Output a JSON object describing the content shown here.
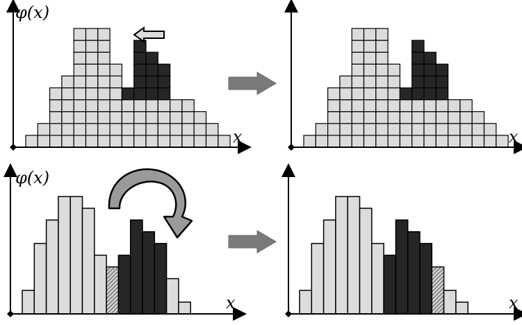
{
  "labels": {
    "phi": "φ(x)",
    "x": "x"
  },
  "colors": {
    "light_cell": "#dcdcdc",
    "dark_cell": "#262626",
    "stroke": "#000000",
    "flow_arrow": "#7a7a7a",
    "curved_arrow": "#9a9a9a"
  },
  "top_left_cells": {
    "light_heights": [
      1,
      2,
      5,
      6,
      10,
      10,
      10,
      7,
      4,
      4,
      4,
      4,
      4,
      4,
      3,
      2,
      1
    ],
    "dark_stack": [
      0,
      0,
      0,
      0,
      0,
      0,
      0,
      0,
      1,
      5,
      4,
      3,
      0,
      0,
      0,
      0,
      0
    ]
  },
  "top_right_cells": {
    "light_heights": [
      1,
      2,
      5,
      6,
      10,
      10,
      10,
      7,
      4,
      4,
      4,
      4,
      4,
      4,
      3,
      2,
      1
    ],
    "dark_stack": [
      0,
      0,
      0,
      0,
      0,
      0,
      0,
      0,
      1,
      5,
      4,
      3,
      0,
      0,
      0,
      0,
      0
    ]
  },
  "bottom_left_bars": {
    "heights": [
      2,
      6,
      8,
      10,
      10,
      9,
      5,
      4,
      5,
      8,
      7,
      6,
      3,
      1
    ],
    "types": [
      "light",
      "light",
      "light",
      "light",
      "light",
      "light",
      "light",
      "hatched",
      "dark",
      "dark",
      "dark",
      "dark",
      "light",
      "light"
    ]
  },
  "bottom_right_bars": {
    "heights": [
      2,
      6,
      8,
      10,
      10,
      9,
      6,
      5,
      8,
      7,
      6,
      4,
      2,
      1
    ],
    "types": [
      "light",
      "light",
      "light",
      "light",
      "light",
      "light",
      "light",
      "dark",
      "dark",
      "dark",
      "dark",
      "hatched",
      "light",
      "light"
    ]
  }
}
